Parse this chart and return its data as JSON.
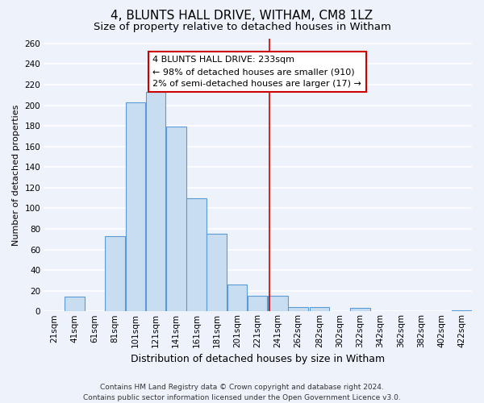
{
  "title": "4, BLUNTS HALL DRIVE, WITHAM, CM8 1LZ",
  "subtitle": "Size of property relative to detached houses in Witham",
  "xlabel": "Distribution of detached houses by size in Witham",
  "ylabel": "Number of detached properties",
  "bin_labels": [
    "21sqm",
    "41sqm",
    "61sqm",
    "81sqm",
    "101sqm",
    "121sqm",
    "141sqm",
    "161sqm",
    "181sqm",
    "201sqm",
    "221sqm",
    "241sqm",
    "262sqm",
    "282sqm",
    "302sqm",
    "322sqm",
    "342sqm",
    "362sqm",
    "382sqm",
    "402sqm",
    "422sqm"
  ],
  "bin_left_edges": [
    11,
    31,
    51,
    71,
    91,
    111,
    131,
    151,
    171,
    191,
    211,
    231,
    251,
    272,
    292,
    312,
    332,
    352,
    372,
    392,
    412
  ],
  "bin_width": 20,
  "bar_heights": [
    0,
    14,
    0,
    73,
    203,
    213,
    179,
    110,
    75,
    26,
    15,
    15,
    4,
    4,
    0,
    3,
    0,
    0,
    0,
    0,
    1
  ],
  "bar_color": "#c9ddf0",
  "bar_edge_color": "#5b9bd5",
  "property_value": 233,
  "vline_color": "#cc0000",
  "annotation_text": "4 BLUNTS HALL DRIVE: 233sqm\n← 98% of detached houses are smaller (910)\n2% of semi-detached houses are larger (17) →",
  "annotation_box_color": "#ffffff",
  "annotation_box_edge_color": "#cc0000",
  "ylim": [
    0,
    265
  ],
  "xlim": [
    11,
    432
  ],
  "yticks": [
    0,
    20,
    40,
    60,
    80,
    100,
    120,
    140,
    160,
    180,
    200,
    220,
    240,
    260
  ],
  "footer_text": "Contains HM Land Registry data © Crown copyright and database right 2024.\nContains public sector information licensed under the Open Government Licence v3.0.",
  "bg_color": "#eef2fa",
  "grid_color": "#ffffff",
  "title_fontsize": 11,
  "subtitle_fontsize": 9.5,
  "xlabel_fontsize": 9,
  "ylabel_fontsize": 8,
  "tick_fontsize": 7.5,
  "footer_fontsize": 6.5
}
